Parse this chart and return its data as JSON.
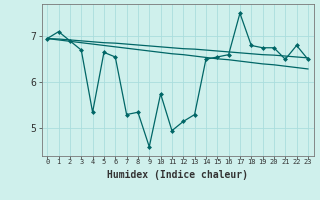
{
  "title": "",
  "xlabel": "Humidex (Indice chaleur)",
  "ylabel": "",
  "bg_color": "#cff0ec",
  "grid_color": "#aadddd",
  "line_color": "#006666",
  "x": [
    0,
    1,
    2,
    3,
    4,
    5,
    6,
    7,
    8,
    9,
    10,
    11,
    12,
    13,
    14,
    15,
    16,
    17,
    18,
    19,
    20,
    21,
    22,
    23
  ],
  "series1": [
    6.95,
    7.1,
    6.9,
    6.7,
    5.35,
    6.65,
    6.55,
    5.3,
    5.35,
    4.6,
    5.75,
    4.95,
    5.15,
    5.3,
    6.5,
    6.55,
    6.6,
    7.5,
    6.8,
    6.75,
    6.75,
    6.5,
    6.8,
    6.5
  ],
  "series2": [
    6.95,
    6.92,
    6.89,
    6.86,
    6.83,
    6.8,
    6.77,
    6.74,
    6.71,
    6.68,
    6.65,
    6.62,
    6.6,
    6.57,
    6.54,
    6.51,
    6.49,
    6.46,
    6.43,
    6.4,
    6.38,
    6.35,
    6.32,
    6.29
  ],
  "series3": [
    6.95,
    6.94,
    6.92,
    6.9,
    6.88,
    6.86,
    6.85,
    6.83,
    6.81,
    6.79,
    6.77,
    6.75,
    6.73,
    6.72,
    6.7,
    6.68,
    6.66,
    6.64,
    6.62,
    6.6,
    6.59,
    6.57,
    6.55,
    6.53
  ],
  "ylim": [
    4.4,
    7.7
  ],
  "yticks": [
    5,
    6,
    7
  ],
  "xlim": [
    -0.5,
    23.5
  ]
}
